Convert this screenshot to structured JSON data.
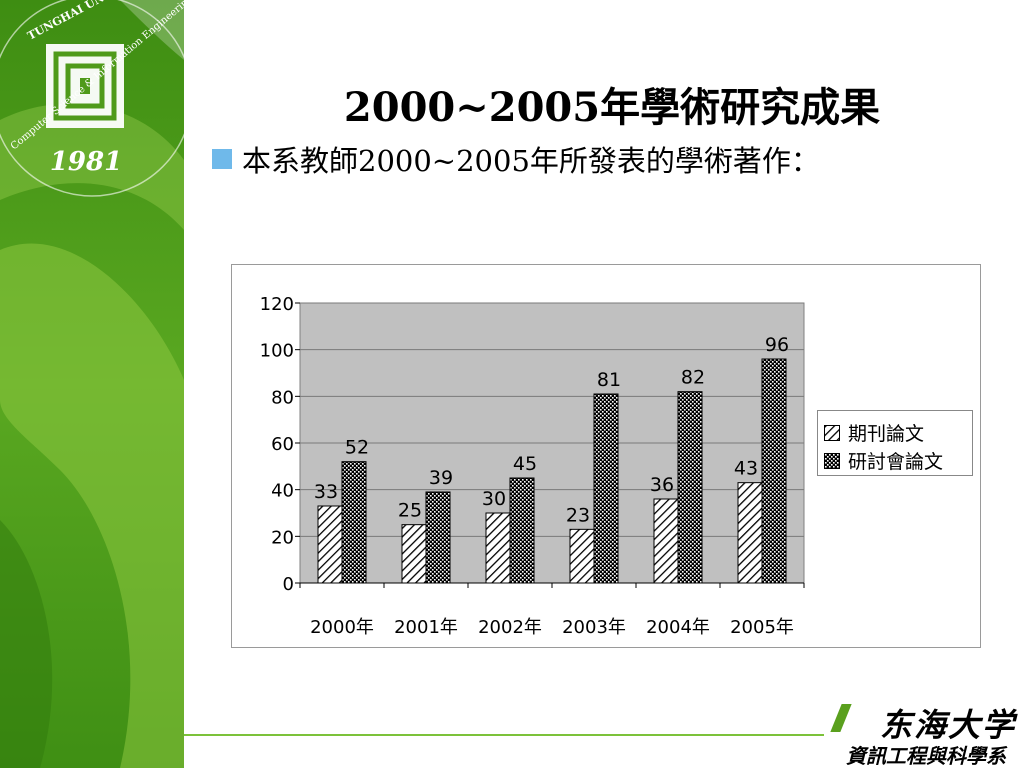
{
  "slide": {
    "title": "2000~2005年學術研究成果",
    "bullet": "本系教師2000~2005年所發表的學術著作：",
    "logo": {
      "badge_text_top": "TUNGHAI UNIVERSITY",
      "badge_text_side": "Computer Science & Information Engineering",
      "badge_year": "1981",
      "school_name": "东海大学",
      "dept_name": "資訊工程與科學系"
    },
    "colors": {
      "sidebar_green": "#4f9a1a",
      "sidebar_light": "#8cc63f",
      "plot_background": "#c0c0c0",
      "bullet_blue": "#6fb9ea",
      "accent_line": "#7cc23a"
    }
  },
  "chart_data": {
    "type": "bar",
    "categories": [
      "2000年",
      "2001年",
      "2002年",
      "2003年",
      "2004年",
      "2005年"
    ],
    "series": [
      {
        "name": "期刊論文",
        "values": [
          33,
          25,
          30,
          23,
          36,
          43
        ],
        "pattern": "diagonal-hatch"
      },
      {
        "name": "研討會論文",
        "values": [
          52,
          39,
          45,
          81,
          82,
          96
        ],
        "pattern": "dotted-crosshatch"
      }
    ],
    "yticks": [
      "0",
      "20",
      "40",
      "60",
      "80",
      "100",
      "120"
    ],
    "ylim": [
      0,
      120
    ],
    "title": "",
    "xlabel": "",
    "ylabel": "",
    "grid": true,
    "data_labels": true,
    "legend": "right"
  }
}
